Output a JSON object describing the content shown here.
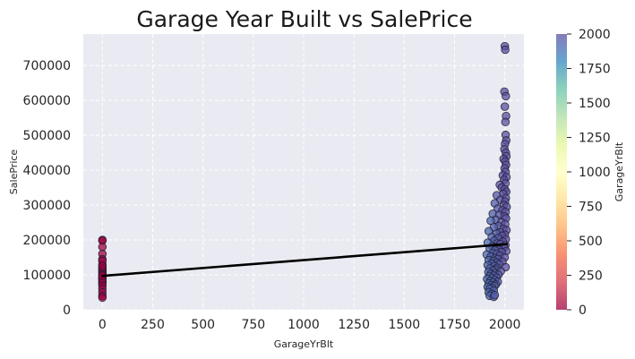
{
  "chart_data": {
    "type": "scatter",
    "title": "Garage Year Built vs SalePrice",
    "xlabel": "GarageYrBlt",
    "ylabel": "SalePrice",
    "xlim": [
      -95,
      2095
    ],
    "ylim": [
      0,
      790000
    ],
    "x_ticks": [
      "0",
      "250",
      "500",
      "750",
      "1000",
      "1250",
      "1500",
      "1750",
      "2000"
    ],
    "y_ticks": [
      "0",
      "100000",
      "200000",
      "300000",
      "400000",
      "500000",
      "600000",
      "700000"
    ],
    "grid": true,
    "colormap": "Spectral",
    "colorbar": {
      "label": "GarageYrBlt",
      "range": [
        0,
        2000
      ],
      "ticks": [
        "0",
        "250",
        "500",
        "750",
        "1000",
        "1250",
        "1500",
        "1750",
        "2000"
      ]
    },
    "regression_line": {
      "x": [
        0,
        2010
      ],
      "y": [
        97000,
        188000
      ],
      "color": "#000000"
    },
    "points": [
      {
        "x": 0,
        "y": 200000
      },
      {
        "x": 0,
        "y": 198000
      },
      {
        "x": 0,
        "y": 180000
      },
      {
        "x": 0,
        "y": 160000
      },
      {
        "x": 0,
        "y": 145000
      },
      {
        "x": 0,
        "y": 130000
      },
      {
        "x": 0,
        "y": 120000
      },
      {
        "x": 0,
        "y": 115000
      },
      {
        "x": 0,
        "y": 110000
      },
      {
        "x": 0,
        "y": 105000
      },
      {
        "x": 0,
        "y": 100000
      },
      {
        "x": 0,
        "y": 95000
      },
      {
        "x": 0,
        "y": 90000
      },
      {
        "x": 0,
        "y": 85000
      },
      {
        "x": 0,
        "y": 80000
      },
      {
        "x": 0,
        "y": 75000
      },
      {
        "x": 0,
        "y": 70000
      },
      {
        "x": 0,
        "y": 60000
      },
      {
        "x": 0,
        "y": 50000
      },
      {
        "x": 0,
        "y": 40000
      },
      {
        "x": 0,
        "y": 35000
      },
      {
        "x": 0,
        "y": 140000
      },
      {
        "x": 0,
        "y": 125000
      },
      {
        "x": 0,
        "y": 88000
      },
      {
        "x": 0,
        "y": 98000
      },
      {
        "x": 2000,
        "y": 755000
      },
      {
        "x": 2002,
        "y": 745000
      },
      {
        "x": 1998,
        "y": 625000
      },
      {
        "x": 2005,
        "y": 612000
      },
      {
        "x": 2000,
        "y": 582000
      },
      {
        "x": 2006,
        "y": 555000
      },
      {
        "x": 2003,
        "y": 538000
      },
      {
        "x": 2004,
        "y": 501000
      },
      {
        "x": 2007,
        "y": 485000
      },
      {
        "x": 2001,
        "y": 475000
      },
      {
        "x": 1998,
        "y": 460000
      },
      {
        "x": 2005,
        "y": 450000
      },
      {
        "x": 2008,
        "y": 440000
      },
      {
        "x": 1994,
        "y": 432000
      },
      {
        "x": 2002,
        "y": 425000
      },
      {
        "x": 2006,
        "y": 415000
      },
      {
        "x": 1999,
        "y": 405000
      },
      {
        "x": 2004,
        "y": 395000
      },
      {
        "x": 1990,
        "y": 385000
      },
      {
        "x": 2008,
        "y": 380000
      },
      {
        "x": 1996,
        "y": 372000
      },
      {
        "x": 2003,
        "y": 362000
      },
      {
        "x": 1975,
        "y": 358000
      },
      {
        "x": 1985,
        "y": 350000
      },
      {
        "x": 2000,
        "y": 345000
      },
      {
        "x": 2007,
        "y": 338000
      },
      {
        "x": 1992,
        "y": 332000
      },
      {
        "x": 1960,
        "y": 328000
      },
      {
        "x": 2005,
        "y": 320000
      },
      {
        "x": 1978,
        "y": 315000
      },
      {
        "x": 2001,
        "y": 310000
      },
      {
        "x": 1950,
        "y": 305000
      },
      {
        "x": 1995,
        "y": 300000
      },
      {
        "x": 2009,
        "y": 295000
      },
      {
        "x": 1965,
        "y": 290000
      },
      {
        "x": 1988,
        "y": 285000
      },
      {
        "x": 2004,
        "y": 280000
      },
      {
        "x": 1940,
        "y": 275000
      },
      {
        "x": 1972,
        "y": 272000
      },
      {
        "x": 1998,
        "y": 268000
      },
      {
        "x": 2006,
        "y": 262000
      },
      {
        "x": 1955,
        "y": 258000
      },
      {
        "x": 1930,
        "y": 255000
      },
      {
        "x": 1982,
        "y": 250000
      },
      {
        "x": 2002,
        "y": 245000
      },
      {
        "x": 1968,
        "y": 240000
      },
      {
        "x": 1945,
        "y": 236000
      },
      {
        "x": 1993,
        "y": 232000
      },
      {
        "x": 2008,
        "y": 228000
      },
      {
        "x": 1920,
        "y": 225000
      },
      {
        "x": 1976,
        "y": 222000
      },
      {
        "x": 1958,
        "y": 218000
      },
      {
        "x": 2000,
        "y": 215000
      },
      {
        "x": 1986,
        "y": 212000
      },
      {
        "x": 1935,
        "y": 208000
      },
      {
        "x": 1966,
        "y": 205000
      },
      {
        "x": 2005,
        "y": 202000
      },
      {
        "x": 1948,
        "y": 198000
      },
      {
        "x": 1990,
        "y": 195000
      },
      {
        "x": 1915,
        "y": 192000
      },
      {
        "x": 1962,
        "y": 190000
      },
      {
        "x": 1978,
        "y": 188000
      },
      {
        "x": 2003,
        "y": 185000
      },
      {
        "x": 1938,
        "y": 182000
      },
      {
        "x": 1955,
        "y": 180000
      },
      {
        "x": 1996,
        "y": 178000
      },
      {
        "x": 1925,
        "y": 175000
      },
      {
        "x": 1970,
        "y": 172000
      },
      {
        "x": 1950,
        "y": 170000
      },
      {
        "x": 2007,
        "y": 168000
      },
      {
        "x": 1984,
        "y": 165000
      },
      {
        "x": 1940,
        "y": 162000
      },
      {
        "x": 1960,
        "y": 160000
      },
      {
        "x": 1910,
        "y": 158000
      },
      {
        "x": 1975,
        "y": 155000
      },
      {
        "x": 1930,
        "y": 152000
      },
      {
        "x": 1999,
        "y": 150000
      },
      {
        "x": 1952,
        "y": 148000
      },
      {
        "x": 1965,
        "y": 145000
      },
      {
        "x": 1920,
        "y": 142000
      },
      {
        "x": 1945,
        "y": 140000
      },
      {
        "x": 1988,
        "y": 138000
      },
      {
        "x": 1958,
        "y": 135000
      },
      {
        "x": 1935,
        "y": 132000
      },
      {
        "x": 1972,
        "y": 130000
      },
      {
        "x": 1915,
        "y": 128000
      },
      {
        "x": 1948,
        "y": 125000
      },
      {
        "x": 2004,
        "y": 122000
      },
      {
        "x": 1962,
        "y": 120000
      },
      {
        "x": 1925,
        "y": 118000
      },
      {
        "x": 1955,
        "y": 115000
      },
      {
        "x": 1940,
        "y": 112000
      },
      {
        "x": 1980,
        "y": 110000
      },
      {
        "x": 1918,
        "y": 108000
      },
      {
        "x": 1950,
        "y": 105000
      },
      {
        "x": 1930,
        "y": 102000
      },
      {
        "x": 1968,
        "y": 100000
      },
      {
        "x": 1945,
        "y": 98000
      },
      {
        "x": 1922,
        "y": 95000
      },
      {
        "x": 1958,
        "y": 92000
      },
      {
        "x": 1935,
        "y": 90000
      },
      {
        "x": 1912,
        "y": 88000
      },
      {
        "x": 1950,
        "y": 85000
      },
      {
        "x": 1928,
        "y": 82000
      },
      {
        "x": 1965,
        "y": 80000
      },
      {
        "x": 1940,
        "y": 78000
      },
      {
        "x": 1920,
        "y": 75000
      },
      {
        "x": 1955,
        "y": 72000
      },
      {
        "x": 1932,
        "y": 70000
      },
      {
        "x": 1948,
        "y": 68000
      },
      {
        "x": 1915,
        "y": 65000
      },
      {
        "x": 1938,
        "y": 62000
      },
      {
        "x": 1925,
        "y": 60000
      },
      {
        "x": 1945,
        "y": 55000
      },
      {
        "x": 1920,
        "y": 50000
      },
      {
        "x": 1935,
        "y": 45000
      },
      {
        "x": 1925,
        "y": 40000
      },
      {
        "x": 1945,
        "y": 37000
      },
      {
        "x": 1950,
        "y": 42000
      }
    ]
  }
}
